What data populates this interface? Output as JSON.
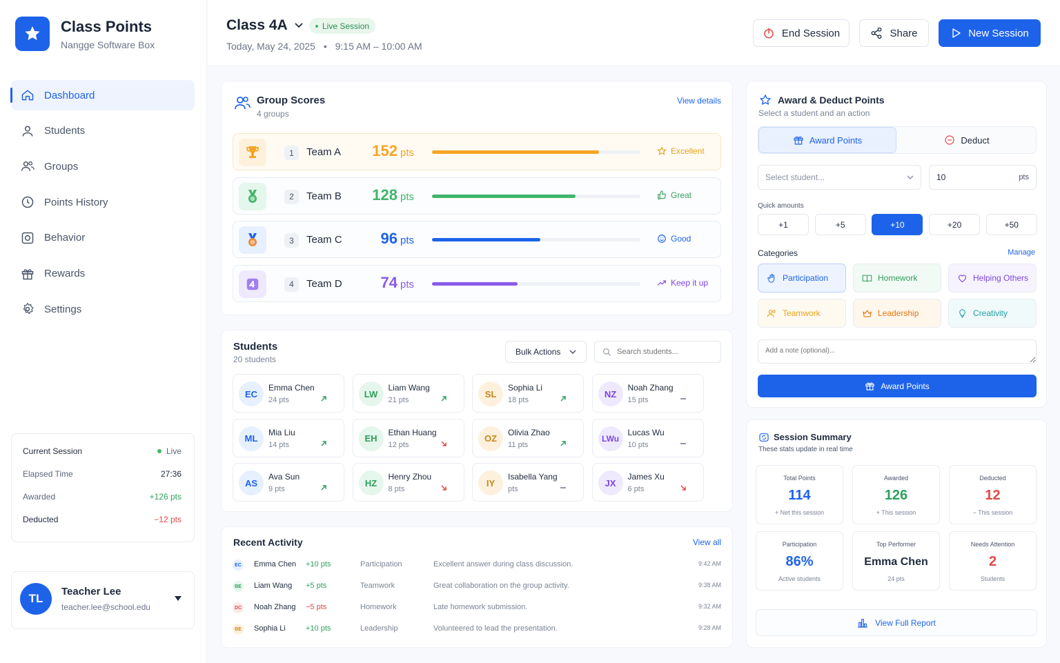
{
  "brand": {
    "title": "Class Points",
    "subtitle": "Nangge Software Box"
  },
  "nav": [
    {
      "label": "Dashboard",
      "icon": "home-icon",
      "active": true
    },
    {
      "label": "Students",
      "icon": "user-icon"
    },
    {
      "label": "Groups",
      "icon": "users-icon"
    },
    {
      "label": "Points History",
      "icon": "clock-icon"
    },
    {
      "label": "Behavior",
      "icon": "behavior-icon"
    },
    {
      "label": "Rewards",
      "icon": "gift-icon"
    },
    {
      "label": "Settings",
      "icon": "gear-icon"
    }
  ],
  "current_session": {
    "title": "Current Session",
    "status": "Live",
    "elapsed_label": "Elapsed Time",
    "elapsed_value": "27:36",
    "awarded_label": "Awarded",
    "awarded_value": "+126 pts",
    "deducted_label": "Deducted",
    "deducted_value": "−12 pts"
  },
  "teacher": {
    "initials": "TL",
    "name": "Teacher Lee",
    "email": "teacher.lee@school.edu"
  },
  "header": {
    "class_name": "Class 4A",
    "live_badge": "Live Session",
    "date": "Today, May 24, 2025",
    "time": "9:15 AM – 10:00 AM",
    "end_session": "End Session",
    "share": "Share",
    "new_session": "New Session"
  },
  "group_scores": {
    "title": "Group Scores",
    "subtitle": "4 groups",
    "view_details": "View details",
    "pts_unit": "pts",
    "teams": [
      {
        "rank": "1",
        "name": "Team A",
        "points": "152",
        "progress": 0.8,
        "badge": "Excellent",
        "color": "#f5a524",
        "badge_color": "#e8a317"
      },
      {
        "rank": "2",
        "name": "Team B",
        "points": "128",
        "progress": 0.69,
        "badge": "Great",
        "color": "#3fb56a",
        "badge_color": "#3a9e5f"
      },
      {
        "rank": "3",
        "name": "Team C",
        "points": "96",
        "progress": 0.52,
        "badge": "Good",
        "color": "#1d63ea",
        "badge_color": "#1d63ea"
      },
      {
        "rank": "4",
        "name": "Team D",
        "points": "74",
        "progress": 0.41,
        "badge": "Keep it up",
        "color": "#8a5be8",
        "badge_color": "#7b45e0"
      }
    ]
  },
  "students": {
    "title": "Students",
    "subtitle": "20 students",
    "bulk_actions": "Bulk Actions",
    "search_placeholder": "Search students...",
    "list": [
      {
        "initials": "EC",
        "name": "Emma Chen",
        "points": "24 pts",
        "trend": "up",
        "bg": "#e6f0fe",
        "fg": "#1d63ea"
      },
      {
        "initials": "LW",
        "name": "Liam Wang",
        "points": "21 pts",
        "trend": "up",
        "bg": "#e5f6ec",
        "fg": "#2f9e5b"
      },
      {
        "initials": "SL",
        "name": "Sophia Li",
        "points": "18 pts",
        "trend": "up",
        "bg": "#fdf1dd",
        "fg": "#c7861a"
      },
      {
        "initials": "NZ",
        "name": "Noah Zhang",
        "points": "15 pts",
        "trend": "flat",
        "bg": "#efe9fd",
        "fg": "#7b45e0"
      },
      {
        "initials": "ML",
        "name": "Mia Liu",
        "points": "14 pts",
        "trend": "up",
        "bg": "#e6f0fe",
        "fg": "#1d63ea"
      },
      {
        "initials": "EH",
        "name": "Ethan Huang",
        "points": "12 pts",
        "trend": "down",
        "bg": "#e5f6ec",
        "fg": "#2f9e5b"
      },
      {
        "initials": "OZ",
        "name": "Olivia Zhao",
        "points": "11 pts",
        "trend": "up",
        "bg": "#fdf1dd",
        "fg": "#c7861a"
      },
      {
        "initials": "LWu",
        "name": "Lucas Wu",
        "points": "10 pts",
        "trend": "flat",
        "bg": "#efe9fd",
        "fg": "#7b45e0"
      },
      {
        "initials": "AS",
        "name": "Ava Sun",
        "points": "9 pts",
        "trend": "up",
        "bg": "#e6f0fe",
        "fg": "#1d63ea"
      },
      {
        "initials": "HZ",
        "name": "Henry Zhou",
        "points": "8 pts",
        "trend": "down",
        "bg": "#e5f6ec",
        "fg": "#2f9e5b"
      },
      {
        "initials": "IY",
        "name": "Isabella Yang",
        "points": "pts",
        "trend": "flat",
        "bg": "#fdf1dd",
        "fg": "#c7861a"
      },
      {
        "initials": "JX",
        "name": "James Xu",
        "points": "6 pts",
        "trend": "down",
        "bg": "#efe9fd",
        "fg": "#7b45e0"
      }
    ]
  },
  "recent_activity": {
    "title": "Recent Activity",
    "view_all": "View all",
    "items": [
      {
        "initials": "EC",
        "name": "Emma Chen",
        "delta": "+10 pts",
        "category": "Participation",
        "note": "Excellent answer during class discussion.",
        "time": "9:42 AM",
        "bg": "#e6f0fe",
        "fg": "#1d63ea",
        "delta_color": "#2f9e5b"
      },
      {
        "initials": "BE",
        "name": "Liam Wang",
        "delta": "+5 pts",
        "category": "Teamwork",
        "note": "Great collaboration on the group activity.",
        "time": "9:38 AM",
        "bg": "#e5f6ec",
        "fg": "#2f9e5b",
        "delta_color": "#2f9e5b"
      },
      {
        "initials": "DC",
        "name": "Noah Zhang",
        "delta": "−5 pts",
        "category": "Homework",
        "note": "Late homework submission.",
        "time": "9:32 AM",
        "bg": "#fde8e8",
        "fg": "#e04848",
        "delta_color": "#e04848"
      },
      {
        "initials": "BE",
        "name": "Sophia Li",
        "delta": "+10 pts",
        "category": "Leadership",
        "note": "Volunteered to lead the presentation.",
        "time": "9:28 AM",
        "bg": "#fdf1dd",
        "fg": "#c7861a",
        "delta_color": "#2f9e5b"
      }
    ]
  },
  "award": {
    "title": "Award & Deduct Points",
    "subtitle": "Select a student and an action",
    "award_tab": "Award Points",
    "deduct_tab": "Deduct",
    "student_placeholder": "Select student...",
    "amount_value": "10",
    "amount_unit": "pts",
    "quick_label": "Quick amounts",
    "quick": [
      "+1",
      "+5",
      "+10",
      "+20",
      "+50"
    ],
    "categories_label": "Categories",
    "manage": "Manage",
    "categories": [
      {
        "label": "Participation",
        "icon": "hand-icon",
        "color": "#1d63ea",
        "bg": "#eef4ff",
        "selected": true
      },
      {
        "label": "Homework",
        "icon": "book-icon",
        "color": "#2f9e5b",
        "bg": "#f2faf5"
      },
      {
        "label": "Helping Others",
        "icon": "heart-icon",
        "color": "#7b45e0",
        "bg": "#f7f3fe"
      },
      {
        "label": "Teamwork",
        "icon": "team-icon",
        "color": "#e8a317",
        "bg": "#fffaf0"
      },
      {
        "label": "Leadership",
        "icon": "crown-icon",
        "color": "#e8770f",
        "bg": "#fff6ec"
      },
      {
        "label": "Creativity",
        "icon": "bulb-icon",
        "color": "#1f9ea8",
        "bg": "#f0fafa"
      }
    ],
    "note_placeholder": "Add a note (optional)...",
    "submit": "Award Points"
  },
  "summary": {
    "title": "Session Summary",
    "subtitle": "These stats update in real time",
    "stats": [
      {
        "label": "Total Points",
        "value": "114",
        "sub": "+ Net this session",
        "color": "#1d63ea"
      },
      {
        "label": "Awarded",
        "value": "126",
        "sub": "+ This session",
        "color": "#2f9e5b"
      },
      {
        "label": "Deducted",
        "value": "12",
        "sub": "− This session",
        "color": "#e04848"
      },
      {
        "label": "Participation",
        "value": "86%",
        "sub": "Active students",
        "color": "#1d63ea"
      },
      {
        "label": "Top Performer",
        "value": "Emma Chen",
        "sub": "24 pts",
        "color": "#1f2a3d"
      },
      {
        "label": "Needs Attention",
        "value": "2",
        "sub": "Students",
        "color": "#e04848"
      }
    ],
    "view_report": "View Full Report"
  },
  "colors": {
    "accent": "#1d63ea",
    "success": "#2f9e5b",
    "danger": "#e04848"
  }
}
